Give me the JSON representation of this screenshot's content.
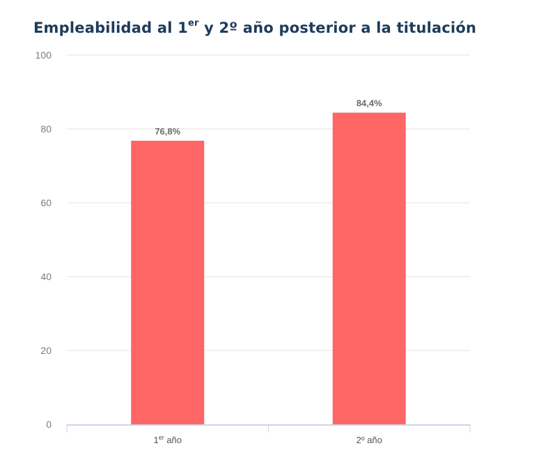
{
  "title": {
    "part1": "Empleabilidad al 1",
    "sup": "er",
    "part2": " y 2º año posterior a la titulación"
  },
  "colors": {
    "bar": "#ff6666",
    "grid": "#e3e3e3",
    "axis": "#cfd3e6",
    "title": "#1d3b5a"
  },
  "chart_data": {
    "type": "bar",
    "categories": [
      {
        "main": "1",
        "sup": "er",
        "rest": " año"
      },
      {
        "main": "2º año",
        "sup": "",
        "rest": ""
      }
    ],
    "values": [
      76.8,
      84.4
    ],
    "data_labels": [
      "76,8%",
      "84,4%"
    ],
    "ylim": [
      0,
      100
    ],
    "yticks": [
      0,
      20,
      40,
      60,
      80,
      100
    ],
    "grid": true,
    "legend": "none"
  }
}
